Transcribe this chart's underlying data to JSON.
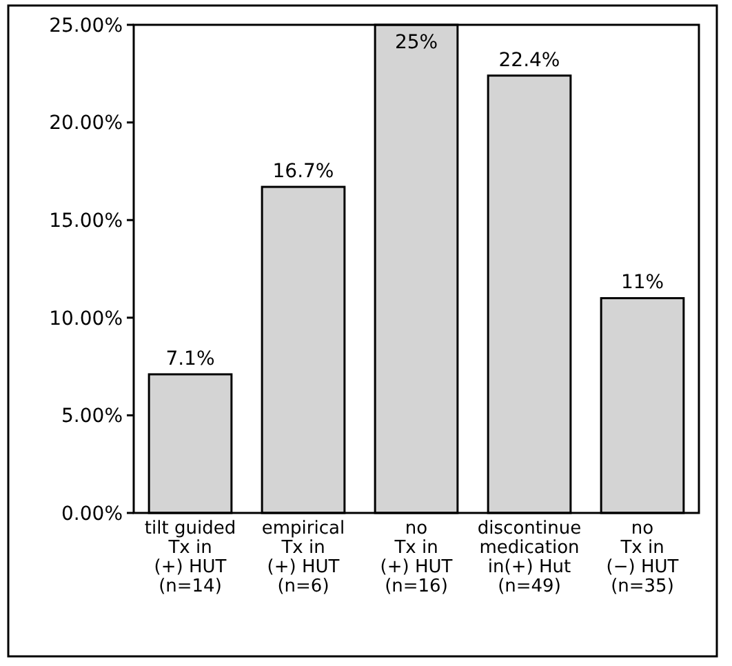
{
  "chart_data": {
    "type": "bar",
    "categories": [
      "tilt guided\nTx in\n(+) HUT\n(n=14)",
      "empirical\nTx in\n(+) HUT\n(n=6)",
      "no\nTx in\n(+) HUT\n(n=16)",
      "discontinue\nmedication\nin(+) Hut\n(n=49)",
      "no\nTx in\n(−) HUT\n(n=35)"
    ],
    "values": [
      7.1,
      16.7,
      25,
      22.4,
      11
    ],
    "value_labels": [
      "7.1%",
      "16.7%",
      "25%",
      "22.4%",
      "11%"
    ],
    "color": "#d4d4d4",
    "ylim": [
      0,
      25
    ],
    "yticks": [
      {
        "value": 0,
        "label": "0.00%"
      },
      {
        "value": 5,
        "label": "5.00%"
      },
      {
        "value": 10,
        "label": "10.00%"
      },
      {
        "value": 15,
        "label": "15.00%"
      },
      {
        "value": 20,
        "label": "20.00%"
      },
      {
        "value": 25,
        "label": "25.00%"
      }
    ],
    "grid": false
  }
}
